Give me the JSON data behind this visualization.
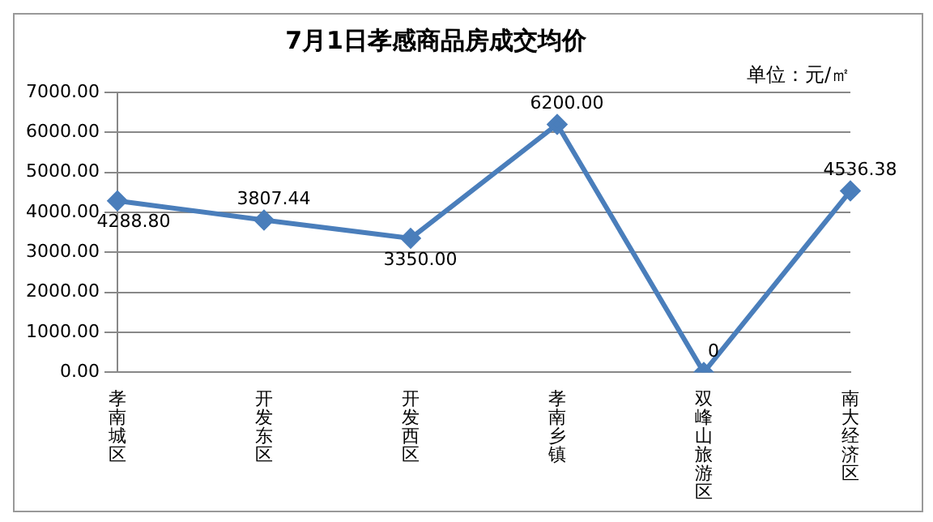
{
  "chart_data": {
    "type": "line",
    "title": "7月1日孝感商品房成交均价",
    "annotations": [
      "单位：元/㎡"
    ],
    "categories": [
      "孝南城区",
      "开发东区",
      "开发西区",
      "孝南乡镇",
      "双峰山旅游区",
      "南大经济区"
    ],
    "series": [
      {
        "color": "#4a7ebb",
        "values": [
          4288.8,
          3807.44,
          3350.0,
          6200.0,
          0,
          4536.38
        ],
        "value_labels": [
          "4288.80",
          "3807.44",
          "3350.00",
          "6200.00",
          "0",
          "4536.38"
        ]
      }
    ],
    "ylim": [
      0,
      7000
    ],
    "yticks": [
      {
        "value": 0,
        "label": "0.00"
      },
      {
        "value": 1000,
        "label": "1000.00"
      },
      {
        "value": 2000,
        "label": "2000.00"
      },
      {
        "value": 3000,
        "label": "3000.00"
      },
      {
        "value": 4000,
        "label": "4000.00"
      },
      {
        "value": 5000,
        "label": "5000.00"
      },
      {
        "value": 6000,
        "label": "6000.00"
      },
      {
        "value": 7000,
        "label": "7000.00"
      }
    ],
    "grid": "y",
    "legend": false,
    "marker": "diamond",
    "line_style": "solid"
  }
}
